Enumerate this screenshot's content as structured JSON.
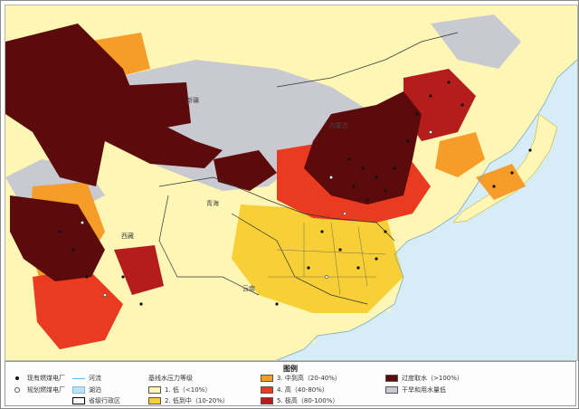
{
  "map": {
    "place_labels": [
      "西藏",
      "青海",
      "内蒙古",
      "新疆",
      "云南"
    ],
    "colors": {
      "water": "#d6ecf6",
      "land_low": "#fdf6b4",
      "low_med": "#f7cf36",
      "med_high": "#f59d28",
      "high": "#ea3a1f",
      "extremely_high": "#b51d1d",
      "over_withdrawal": "#5b0b0b",
      "arid_low_use": "#c9c9d1",
      "boundary": "#333333"
    }
  },
  "legend": {
    "title": "图例",
    "existing_plants": "现有燃煤电厂",
    "planned_plants": "规划燃煤电厂",
    "river": "河流",
    "lake": "湖泊",
    "province_boundary": "省级行政区",
    "baseline_title": "基线水压力等级",
    "low": "1. 低（<10%）",
    "low_medium": "2. 低到中（10-20%）",
    "medium_high": "3. 中到高（20-40%）",
    "high": "4. 高（40-80%）",
    "extremely_high": "5. 极高（80-100%）",
    "over_withdrawal": "过度取水（>100%）",
    "arid_low_use": "干旱和用水量低"
  }
}
